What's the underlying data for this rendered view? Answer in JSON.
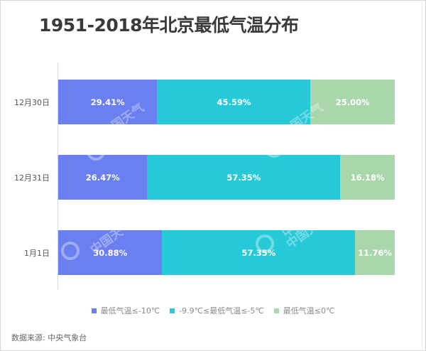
{
  "chart_data": {
    "type": "bar",
    "orientation": "horizontal",
    "stacked": "percent",
    "title": "1951-2018年北京最低气温分布",
    "xlabel": "",
    "ylabel": "",
    "categories": [
      "12月30日",
      "12月31日",
      "1月1日"
    ],
    "series": [
      {
        "name": "最低气温≤-10℃",
        "color": "#6a7ff0",
        "values": [
          29.41,
          26.47,
          30.88
        ],
        "labels": [
          "29.41%",
          "26.47%",
          "30.88%"
        ]
      },
      {
        "name": "-9.9℃≤最低气温≤-5℃",
        "color": "#26c9d8",
        "values": [
          45.59,
          57.35,
          57.35
        ],
        "labels": [
          "45.59%",
          "57.35%",
          "57.35%"
        ]
      },
      {
        "name": "最低气温≤0℃",
        "color": "#a9d7ab",
        "values": [
          25.0,
          16.18,
          11.76
        ],
        "labels": [
          "25.00%",
          "16.18%",
          "11.76%"
        ]
      }
    ],
    "grid": false,
    "legend_position": "bottom",
    "xlim": [
      0,
      100
    ]
  },
  "legend": {
    "items": [
      {
        "label": "最低气温≤-10℃",
        "color": "#6a7ff0"
      },
      {
        "label": "-9.9℃≤最低气温≤-5℃",
        "color": "#26c9d8"
      },
      {
        "label": "最低气温≤0℃",
        "color": "#a9d7ab"
      }
    ]
  },
  "source": "数据来源: 中央气象台",
  "watermark": "中国天气"
}
